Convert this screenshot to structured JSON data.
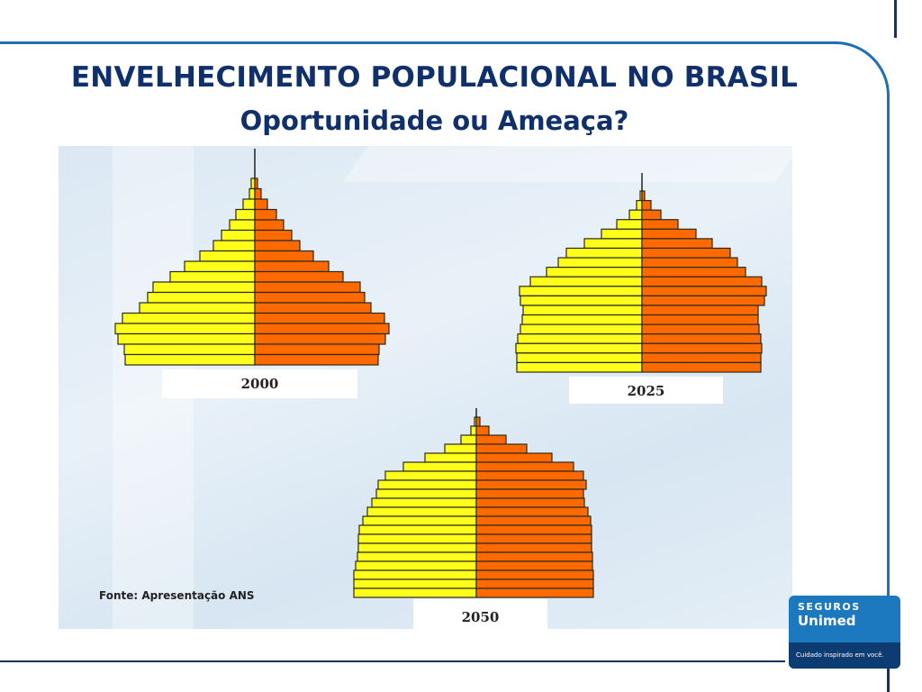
{
  "slide": {
    "title": "ENVELHECIMENTO POPULACIONAL NO BRASIL",
    "subtitle": "Oportunidade ou Ameaça?",
    "source": "Fonte:  Apresentação ANS"
  },
  "logo": {
    "line1": "SEGUROS",
    "line2": "Unimed",
    "tagline": "Cuidado inspirado em você."
  },
  "colors": {
    "left": "#ffff1a",
    "right": "#ff6a00",
    "title": "#10306b",
    "frame": "#1e6fb3"
  },
  "chart_data": [
    {
      "type": "bar",
      "subtype": "population-pyramid",
      "title": "2000",
      "order": "oldest-to-youngest",
      "units": "relative width",
      "left": [
        4,
        6,
        13,
        21,
        28,
        37,
        46,
        61,
        78,
        94,
        113,
        119,
        128,
        147,
        155,
        152,
        145,
        144
      ],
      "right": [
        3,
        7,
        14,
        24,
        32,
        41,
        50,
        65,
        82,
        98,
        117,
        122,
        129,
        144,
        149,
        145,
        138,
        137
      ]
    },
    {
      "type": "bar",
      "subtype": "population-pyramid",
      "title": "2025",
      "order": "oldest-to-youngest",
      "units": "relative width",
      "left": [
        2,
        6,
        14,
        28,
        45,
        64,
        84,
        93,
        106,
        124,
        136,
        135,
        132,
        133,
        135,
        138,
        140,
        139,
        139
      ],
      "right": [
        3,
        10,
        21,
        40,
        60,
        78,
        98,
        106,
        115,
        133,
        138,
        136,
        129,
        129,
        130,
        132,
        133,
        132,
        132
      ]
    },
    {
      "type": "bar",
      "subtype": "population-pyramid",
      "title": "2050",
      "order": "oldest-to-youngest",
      "units": "relative width",
      "left": [
        2,
        6,
        17,
        35,
        57,
        81,
        101,
        109,
        111,
        116,
        121,
        126,
        130,
        131,
        131,
        132,
        134,
        136,
        136,
        136
      ],
      "right": [
        4,
        14,
        33,
        56,
        84,
        108,
        119,
        122,
        119,
        120,
        124,
        127,
        128,
        128,
        128,
        129,
        129,
        130,
        130,
        130
      ]
    }
  ]
}
